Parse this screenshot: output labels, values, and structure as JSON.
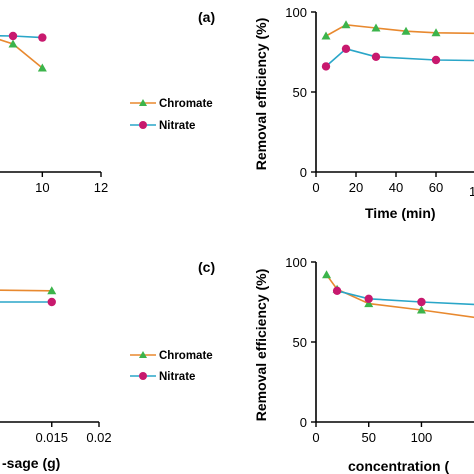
{
  "colors": {
    "chromate": "#e8892f",
    "chromate_marker": "#3cb44b",
    "nitrate": "#2aa6c8",
    "nitrate_marker": "#c8196e"
  },
  "chart_data": [
    {
      "id": "top-left",
      "type": "line",
      "panel_label": "(a)",
      "xlabel": "",
      "ylabel": "",
      "xlim": [
        6,
        12
      ],
      "ylim": [
        0,
        100
      ],
      "x_ticks": [
        8,
        10,
        12
      ],
      "y_ticks": [],
      "series": [
        {
          "name": "Chromate",
          "x": [
            6,
            9,
            10
          ],
          "y": [
            98,
            80,
            65
          ]
        },
        {
          "name": "Nitrate",
          "x": [
            6,
            9,
            10
          ],
          "y": [
            86,
            85,
            84
          ]
        }
      ],
      "markers": [
        {
          "series": 0,
          "x": [
            9,
            10
          ],
          "y": [
            80,
            65
          ]
        },
        {
          "series": 1,
          "x": [
            9,
            10
          ],
          "y": [
            85,
            84
          ]
        }
      ]
    },
    {
      "id": "top-right",
      "type": "line",
      "xlabel": "Time (min)",
      "ylabel": "Removal efficiency (%)",
      "xlim": [
        0,
        120
      ],
      "ylim": [
        0,
        100
      ],
      "x_ticks": [
        0,
        20,
        40,
        60
      ],
      "x_tick_labels": [
        "0",
        "20",
        "40",
        "60"
      ],
      "y_ticks": [
        0,
        50,
        100
      ],
      "partial_tick_label": "1",
      "series": [
        {
          "name": "Chromate",
          "x": [
            5,
            15,
            30,
            45,
            60,
            120
          ],
          "y": [
            85,
            92,
            90,
            88,
            87,
            86
          ]
        },
        {
          "name": "Nitrate",
          "x": [
            5,
            15,
            30,
            60,
            120
          ],
          "y": [
            66,
            77,
            72,
            70,
            69
          ]
        }
      ],
      "markers": [
        {
          "series": 0,
          "x": [
            5,
            15,
            30,
            45,
            60
          ],
          "y": [
            85,
            92,
            90,
            88,
            87
          ]
        },
        {
          "series": 1,
          "x": [
            5,
            15,
            30,
            60
          ],
          "y": [
            66,
            77,
            72,
            70
          ]
        }
      ]
    },
    {
      "id": "bottom-left",
      "type": "line",
      "panel_label": "(c)",
      "xlabel": "-sage (g)",
      "ylabel": "",
      "xlim": [
        0,
        0.02
      ],
      "ylim": [
        0,
        100
      ],
      "x_ticks": [
        0.015,
        0.02
      ],
      "x_tick_labels": [
        "0.015",
        "0.02"
      ],
      "y_ticks": [],
      "series": [
        {
          "name": "Chromate",
          "x": [
            0,
            0.015
          ],
          "y": [
            83,
            82
          ]
        },
        {
          "name": "Nitrate",
          "x": [
            0,
            0.015
          ],
          "y": [
            75,
            75
          ]
        }
      ],
      "markers": [
        {
          "series": 0,
          "x": [
            0.015
          ],
          "y": [
            82
          ]
        },
        {
          "series": 1,
          "x": [
            0.015
          ],
          "y": [
            75
          ]
        }
      ]
    },
    {
      "id": "bottom-right",
      "type": "line",
      "xlabel": "concentration (",
      "ylabel": "Removal efficiency (%)",
      "xlim": [
        0,
        165
      ],
      "ylim": [
        0,
        100
      ],
      "x_ticks": [
        0,
        50,
        100
      ],
      "x_tick_labels": [
        "0",
        "50",
        "100"
      ],
      "y_ticks": [
        0,
        50,
        100
      ],
      "series": [
        {
          "name": "Chromate",
          "x": [
            10,
            20,
            50,
            100,
            165
          ],
          "y": [
            92,
            83,
            74,
            70,
            64
          ]
        },
        {
          "name": "Nitrate",
          "x": [
            20,
            50,
            100,
            165
          ],
          "y": [
            82,
            77,
            75,
            73
          ]
        }
      ],
      "markers": [
        {
          "series": 0,
          "x": [
            10,
            20,
            50,
            100
          ],
          "y": [
            92,
            83,
            74,
            70
          ]
        },
        {
          "series": 1,
          "x": [
            20,
            50,
            100
          ],
          "y": [
            82,
            77,
            75
          ]
        }
      ]
    }
  ],
  "legends": [
    {
      "id": "legend-top",
      "entries": [
        "Chromate",
        "Nitrate"
      ]
    },
    {
      "id": "legend-bottom",
      "entries": [
        "Chromate",
        "Nitrate"
      ]
    }
  ]
}
